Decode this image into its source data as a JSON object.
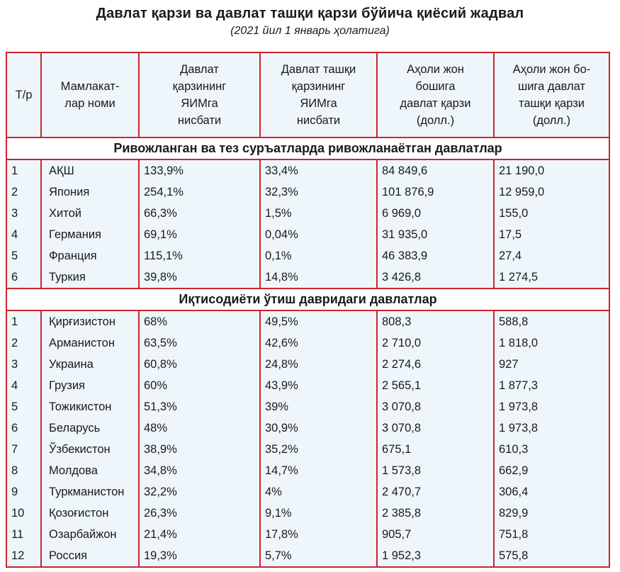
{
  "title": "Давлат қарзи ва давлат ташқи қарзи бўйича қиёсий жадвал",
  "subtitle": "(2021 йил 1 январь ҳолатига)",
  "headers": [
    "Т/р",
    "Мамлакат-\nлар номи",
    "Давлат\nқарзининг\nЯИМга\nнисбати",
    "Давлат ташқи\nқарзининг\nЯИМга\nнисбати",
    "Аҳоли жон\nбошига\nдавлат қарзи\n(долл.)",
    "Аҳоли жон бо-\nшига давлат\nташқи қарзи\n(долл.)"
  ],
  "sections": [
    {
      "title": "Ривожланган ва тез суръатларда ривожланаётган давлатлар",
      "rows": [
        [
          "1",
          "АҚШ",
          "133,9%",
          "33,4%",
          "84 849,6",
          "21 190,0"
        ],
        [
          "2",
          "Япония",
          "254,1%",
          "32,3%",
          "101 876,9",
          "12 959,0"
        ],
        [
          "3",
          "Хитой",
          "66,3%",
          "1,5%",
          "6 969,0",
          "155,0"
        ],
        [
          "4",
          "Германия",
          "69,1%",
          "0,04%",
          "31 935,0",
          "17,5"
        ],
        [
          "5",
          "Франция",
          "115,1%",
          "0,1%",
          "46 383,9",
          "27,4"
        ],
        [
          "6",
          "Туркия",
          "39,8%",
          "14,8%",
          "3 426,8",
          "1 274,5"
        ]
      ]
    },
    {
      "title": "Иқтисодиёти ўтиш давридаги давлатлар",
      "rows": [
        [
          "1",
          "Қирғизистон",
          "68%",
          "49,5%",
          "808,3",
          "588,8"
        ],
        [
          "2",
          "Арманистон",
          "63,5%",
          "42,6%",
          "2 710,0",
          "1 818,0"
        ],
        [
          "3",
          "Украина",
          "60,8%",
          "24,8%",
          "2 274,6",
          "927"
        ],
        [
          "4",
          "Грузия",
          "60%",
          "43,9%",
          "2 565,1",
          "1 877,3"
        ],
        [
          "5",
          "Тожикистон",
          "51,3%",
          "39%",
          "3 070,8",
          "1 973,8"
        ],
        [
          "6",
          "Беларусь",
          "48%",
          "30,9%",
          "3 070,8",
          "1 973,8"
        ],
        [
          "7",
          "Ўзбекистон",
          "38,9%",
          "35,2%",
          "675,1",
          "610,3"
        ],
        [
          "8",
          "Молдова",
          "34,8%",
          "14,7%",
          "1 573,8",
          "662,9"
        ],
        [
          "9",
          "Туркманистон",
          "32,2%",
          "4%",
          "2 470,7",
          "306,4"
        ],
        [
          "10",
          "Қозоғистон",
          "26,3%",
          "9,1%",
          "2 385,8",
          "829,9"
        ],
        [
          "11",
          "Озарбайжон",
          "21,4%",
          "17,8%",
          "905,7",
          "751,8"
        ],
        [
          "12",
          "Россия",
          "19,3%",
          "5,7%",
          "1 952,3",
          "575,8"
        ]
      ]
    }
  ]
}
